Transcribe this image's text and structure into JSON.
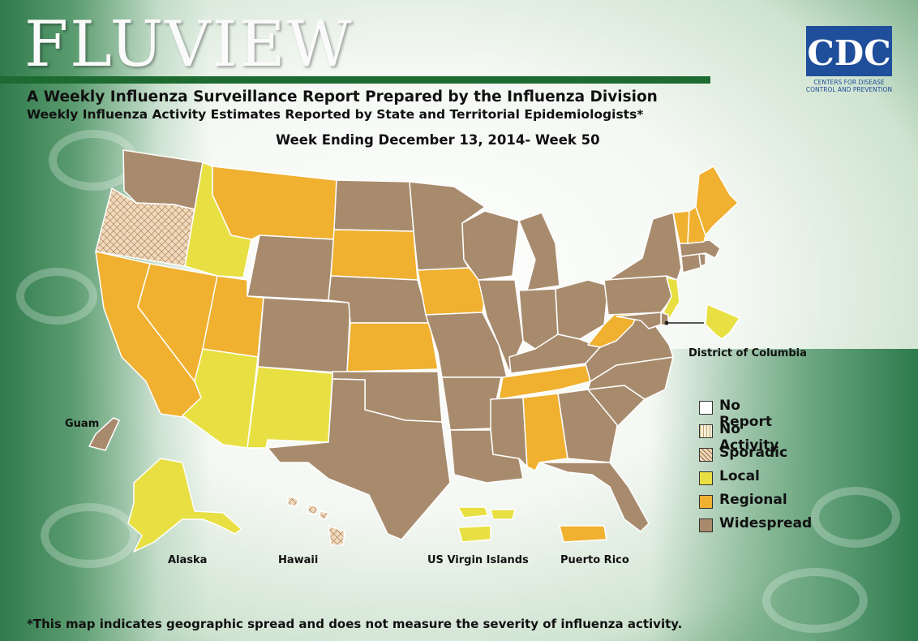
{
  "header": {
    "title": "FLUVIEW",
    "subtitle": "A Weekly Influenza Surveillance Report Prepared by the Influenza Division",
    "subtitle2": "Weekly Influenza Activity Estimates Reported by State and Territorial Epidemiologists*",
    "week": "Week Ending December 13, 2014- Week 50"
  },
  "logo": {
    "text": "CDC",
    "line1": "CENTERS FOR DISEASE",
    "line2": "CONTROL AND PREVENTION"
  },
  "colors": {
    "widespread": "#a88b6d",
    "regional": "#f0b030",
    "local": "#e8e043",
    "sporadic": "#f0d9bc",
    "no_activity": "#f5f0dc",
    "no_report": "#ffffff",
    "brand_green": "#1d6b31",
    "cdc_blue": "#1f4e9a"
  },
  "legend": [
    {
      "key": "no_report",
      "label": "No Report"
    },
    {
      "key": "no_activity",
      "label": "No Activity"
    },
    {
      "key": "sporadic",
      "label": "Sporadic"
    },
    {
      "key": "local",
      "label": "Local"
    },
    {
      "key": "regional",
      "label": "Regional"
    },
    {
      "key": "widespread",
      "label": "Widespread"
    }
  ],
  "map_labels": {
    "dc": "District of Columbia",
    "guam": "Guam",
    "alaska": "Alaska",
    "hawaii": "Hawaii",
    "usvi": "US Virgin Islands",
    "pr": "Puerto Rico"
  },
  "activity": {
    "WA": "widespread",
    "OR": "sporadic",
    "CA": "regional",
    "NV": "regional",
    "ID": "local",
    "MT": "regional",
    "WY": "widespread",
    "UT": "regional",
    "AZ": "local",
    "CO": "widespread",
    "NM": "local",
    "ND": "widespread",
    "SD": "regional",
    "NE": "widespread",
    "KS": "regional",
    "OK": "widespread",
    "TX": "widespread",
    "MN": "widespread",
    "IA": "regional",
    "MO": "widespread",
    "AR": "widespread",
    "LA": "widespread",
    "WI": "widespread",
    "IL": "widespread",
    "MI": "widespread",
    "IN": "widespread",
    "OH": "widespread",
    "KY": "widespread",
    "TN": "regional",
    "MS": "widespread",
    "AL": "regional",
    "GA": "widespread",
    "FL": "widespread",
    "SC": "widespread",
    "NC": "widespread",
    "VA": "widespread",
    "WV": "regional",
    "PA": "widespread",
    "NY": "widespread",
    "NJ": "local",
    "DE": "widespread",
    "MD": "widespread",
    "CT": "widespread",
    "RI": "widespread",
    "MA": "widespread",
    "VT": "regional",
    "NH": "regional",
    "ME": "regional",
    "DC": "local",
    "AK": "local",
    "HI": "sporadic",
    "GU": "widespread",
    "VI": "local",
    "PR": "regional"
  },
  "footnote": "*This map indicates geographic spread and does not measure the severity of influenza activity."
}
